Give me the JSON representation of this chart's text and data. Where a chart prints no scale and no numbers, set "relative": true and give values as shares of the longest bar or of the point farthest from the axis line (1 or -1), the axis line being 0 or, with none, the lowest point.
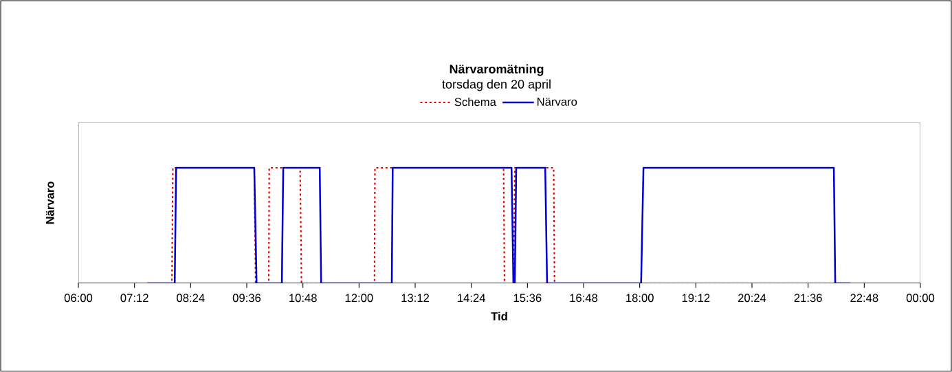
{
  "chart_data": {
    "type": "line",
    "title": "Närvaromätning",
    "subtitle": "torsdag den 20 april",
    "xlabel": "Tid",
    "ylabel": "Närvaro",
    "xlim": [
      6,
      24
    ],
    "xticks": [
      {
        "value": 6,
        "label": "06:00"
      },
      {
        "value": 7.2,
        "label": "07:12"
      },
      {
        "value": 8.4,
        "label": "08:24"
      },
      {
        "value": 9.6,
        "label": "09:36"
      },
      {
        "value": 10.8,
        "label": "10:48"
      },
      {
        "value": 12,
        "label": "12:00"
      },
      {
        "value": 13.2,
        "label": "13:12"
      },
      {
        "value": 14.4,
        "label": "14:24"
      },
      {
        "value": 15.6,
        "label": "15:36"
      },
      {
        "value": 16.8,
        "label": "16:48"
      },
      {
        "value": 18,
        "label": "18:00"
      },
      {
        "value": 19.2,
        "label": "19:12"
      },
      {
        "value": 20.4,
        "label": "20:24"
      },
      {
        "value": 21.6,
        "label": "21:36"
      },
      {
        "value": 22.8,
        "label": "22:48"
      },
      {
        "value": 24,
        "label": "00:00"
      }
    ],
    "relative": true,
    "tick_labels": "x",
    "legend": "top",
    "series": [
      {
        "name": "Schema",
        "color": "#e00000",
        "line_style": "dotted",
        "x": [
          7.47,
          8.0,
          8.02,
          9.76,
          9.79,
          10.07,
          10.08,
          10.74,
          10.77,
          12.33,
          12.34,
          15.09,
          15.11,
          15.3,
          15.33,
          16.16,
          16.18,
          22.5
        ],
        "values": [
          0,
          0,
          1,
          1,
          0,
          0,
          1,
          1,
          0,
          0,
          1,
          1,
          0,
          0,
          1,
          1,
          0,
          0
        ]
      },
      {
        "name": "Närvaro",
        "color": "#0000cc",
        "line_style": "solid",
        "x": [
          7.47,
          8.06,
          8.09,
          9.76,
          9.81,
          10.35,
          10.38,
          11.16,
          11.19,
          12.7,
          12.72,
          15.26,
          15.3,
          15.33,
          15.36,
          15.98,
          16.02,
          18.03,
          18.08,
          22.15,
          22.18,
          22.5
        ],
        "values": [
          0,
          0,
          1,
          1,
          0,
          0,
          1,
          1,
          0,
          0,
          1,
          1,
          0,
          0,
          1,
          1,
          0,
          0,
          1,
          1,
          0,
          0
        ]
      }
    ]
  }
}
